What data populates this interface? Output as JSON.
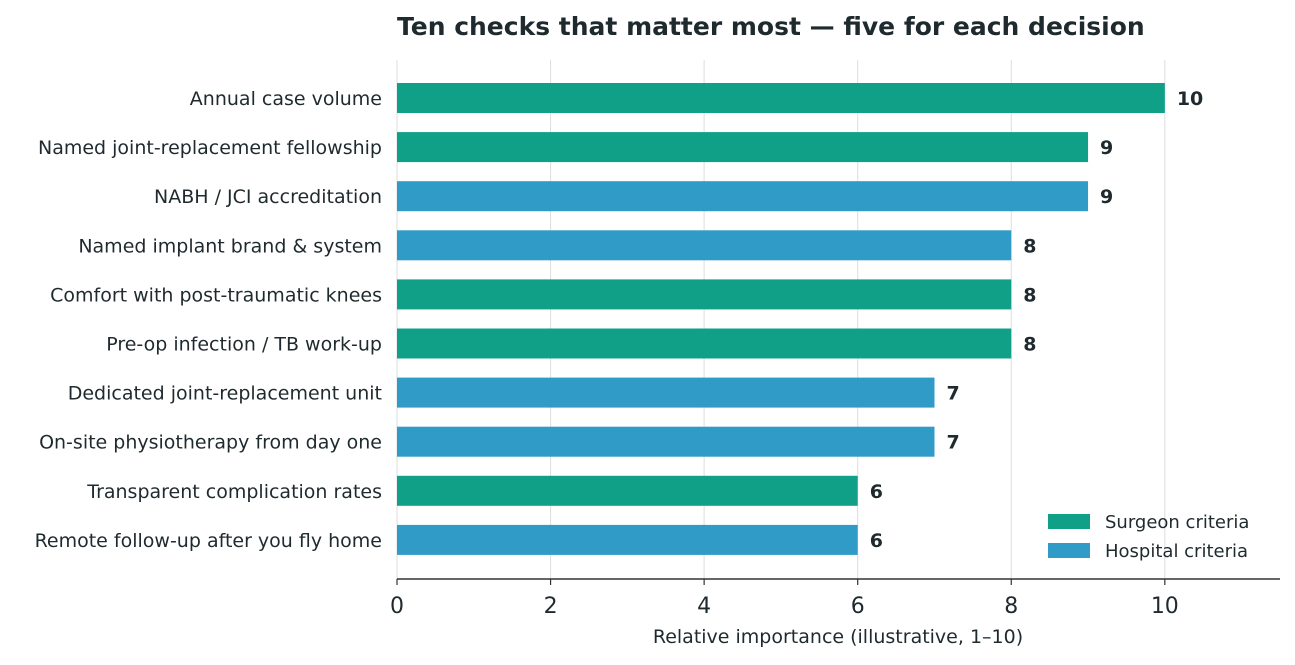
{
  "chart_data": {
    "type": "bar",
    "orientation": "horizontal",
    "title": "Ten checks that matter most — five for each decision",
    "xlabel": "Relative importance (illustrative, 1–10)",
    "ylabel": "",
    "xlim": [
      0,
      11.5
    ],
    "xticks": [
      "0",
      "2",
      "4",
      "6",
      "8",
      "10"
    ],
    "grid": "vertical",
    "legend_position": "bottom-right",
    "series_defs": [
      {
        "name": "Surgeon criteria",
        "color": "#0fa087"
      },
      {
        "name": "Hospital criteria",
        "color": "#2f9bc6"
      }
    ],
    "bars": [
      {
        "category": "Annual case volume",
        "value": 10,
        "label": "10",
        "group": 0
      },
      {
        "category": "Named joint-replacement fellowship",
        "value": 9,
        "label": "9",
        "group": 0
      },
      {
        "category": "NABH / JCI accreditation",
        "value": 9,
        "label": "9",
        "group": 1
      },
      {
        "category": "Named implant brand & system",
        "value": 8,
        "label": "8",
        "group": 1
      },
      {
        "category": "Comfort with post-traumatic knees",
        "value": 8,
        "label": "8",
        "group": 0
      },
      {
        "category": "Pre-op infection / TB work-up",
        "value": 8,
        "label": "8",
        "group": 0
      },
      {
        "category": "Dedicated joint-replacement unit",
        "value": 7,
        "label": "7",
        "group": 1
      },
      {
        "category": "On-site physiotherapy from day one",
        "value": 7,
        "label": "7",
        "group": 1
      },
      {
        "category": "Transparent complication rates",
        "value": 6,
        "label": "6",
        "group": 0
      },
      {
        "category": "Remote follow-up after you fly home",
        "value": 6,
        "label": "6",
        "group": 1
      }
    ],
    "colors": {
      "text": "#1f2a2e",
      "grid": "#dddddd",
      "axis": "#333333"
    }
  }
}
